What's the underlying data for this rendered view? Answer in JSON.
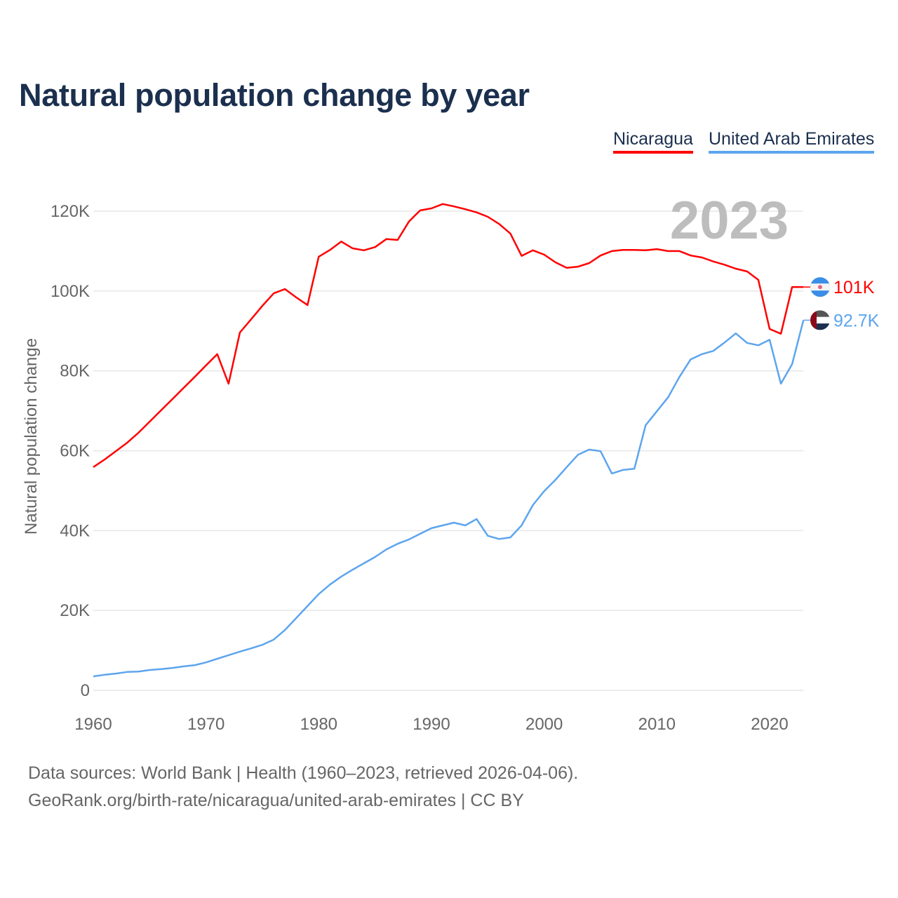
{
  "title": "Natural population change by year",
  "legend": [
    {
      "label": "Nicaragua",
      "color": "#ff0000"
    },
    {
      "label": "United Arab Emirates",
      "color": "#5da5ee"
    }
  ],
  "year_badge": "2023",
  "footer": {
    "line1": "Data sources: World Bank | Health (1960–2023, retrieved 2026-04-06).",
    "line2": "GeoRank.org/birth-rate/nicaragua/united-arab-emirates | CC BY"
  },
  "chart_data": {
    "type": "line",
    "title": "Natural population change by year",
    "xlabel": "",
    "ylabel": "Natural population change",
    "xlim": [
      1960,
      2023
    ],
    "ylim": [
      0,
      120000
    ],
    "x_ticks": [
      1960,
      1970,
      1980,
      1990,
      2000,
      2010,
      2020
    ],
    "x_tick_labels": [
      "1960",
      "1970",
      "1980",
      "1990",
      "2000",
      "2010",
      "2020"
    ],
    "y_ticks": [
      0,
      20000,
      40000,
      60000,
      80000,
      100000,
      120000
    ],
    "y_tick_labels": [
      "0",
      "20K",
      "40K",
      "60K",
      "80K",
      "100K",
      "120K"
    ],
    "grid": true,
    "legend_position": "top-right",
    "x": [
      1960,
      1961,
      1962,
      1963,
      1964,
      1965,
      1966,
      1967,
      1968,
      1969,
      1970,
      1971,
      1972,
      1973,
      1974,
      1975,
      1976,
      1977,
      1978,
      1979,
      1980,
      1981,
      1982,
      1983,
      1984,
      1985,
      1986,
      1987,
      1988,
      1989,
      1990,
      1991,
      1992,
      1993,
      1994,
      1995,
      1996,
      1997,
      1998,
      1999,
      2000,
      2001,
      2002,
      2003,
      2004,
      2005,
      2006,
      2007,
      2008,
      2009,
      2010,
      2011,
      2012,
      2013,
      2014,
      2015,
      2016,
      2017,
      2018,
      2019,
      2020,
      2021,
      2022,
      2023
    ],
    "series": [
      {
        "name": "Nicaragua",
        "color": "#ff0000",
        "end_label": "101K",
        "values": [
          55900,
          57800,
          59900,
          62000,
          64500,
          67300,
          70100,
          72900,
          75700,
          78500,
          81400,
          84200,
          76800,
          89600,
          92900,
          96300,
          99400,
          100500,
          98400,
          96500,
          108600,
          110300,
          112400,
          110700,
          110200,
          111000,
          113000,
          112800,
          117400,
          120200,
          120700,
          121800,
          121200,
          120500,
          119700,
          118600,
          116800,
          114400,
          108800,
          110200,
          109100,
          107200,
          105800,
          106100,
          107000,
          108900,
          110000,
          110300,
          110300,
          110200,
          110500,
          110000,
          110000,
          108900,
          108400,
          107400,
          106600,
          105600,
          104900,
          102800,
          90500,
          89300,
          101000,
          101000
        ]
      },
      {
        "name": "United Arab Emirates",
        "color": "#5da5ee",
        "end_label": "92.7K",
        "values": [
          3500,
          3900,
          4200,
          4600,
          4700,
          5100,
          5300,
          5600,
          6000,
          6300,
          7000,
          7900,
          8800,
          9700,
          10500,
          11400,
          12700,
          15100,
          18100,
          21100,
          24100,
          26500,
          28500,
          30200,
          31800,
          33400,
          35300,
          36700,
          37800,
          39200,
          40600,
          41300,
          42000,
          41300,
          42900,
          38700,
          37900,
          38300,
          41300,
          46400,
          49900,
          52700,
          55900,
          59000,
          60300,
          59900,
          54300,
          55200,
          55500,
          66400,
          69900,
          73400,
          78500,
          82900,
          84200,
          85000,
          87100,
          89400,
          87000,
          86400,
          87800,
          76800,
          81700,
          92700
        ]
      }
    ]
  }
}
